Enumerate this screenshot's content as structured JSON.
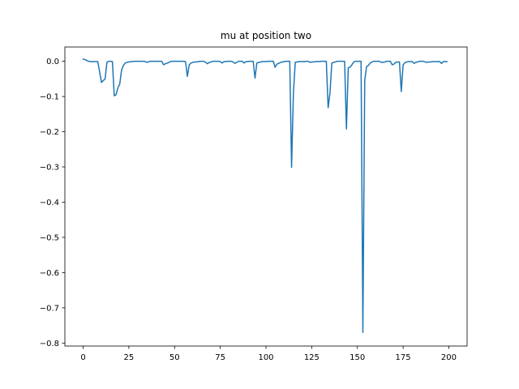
{
  "chart_data": {
    "type": "line",
    "title": "mu at position two",
    "xlabel": "",
    "ylabel": "",
    "xlim": [
      -10,
      210
    ],
    "ylim": [
      -0.8085,
      0.0405
    ],
    "x_ticks": [
      0,
      25,
      50,
      75,
      100,
      125,
      150,
      175,
      200
    ],
    "x_tick_labels": [
      "0",
      "25",
      "50",
      "75",
      "100",
      "125",
      "150",
      "175",
      "200"
    ],
    "y_ticks": [
      0.0,
      -0.1,
      -0.2,
      -0.3,
      -0.4,
      -0.5,
      -0.6,
      -0.7,
      -0.8
    ],
    "y_tick_labels": [
      "0.0",
      "−0.1",
      "−0.2",
      "−0.3",
      "−0.4",
      "−0.5",
      "−0.6",
      "−0.7",
      "−0.8"
    ],
    "grid": false,
    "legend": "none",
    "series": [
      {
        "color": "#1f77b4",
        "x": [
          0,
          1,
          2,
          3,
          4,
          5,
          6,
          7,
          8,
          9,
          10,
          11,
          12,
          13,
          14,
          15,
          16,
          17,
          18,
          19,
          20,
          21,
          22,
          23,
          24,
          25,
          26,
          27,
          28,
          29,
          30,
          31,
          32,
          33,
          34,
          35,
          36,
          37,
          38,
          39,
          40,
          41,
          42,
          43,
          44,
          45,
          46,
          47,
          48,
          49,
          50,
          51,
          52,
          53,
          54,
          55,
          56,
          57,
          58,
          59,
          60,
          61,
          62,
          63,
          64,
          65,
          66,
          67,
          68,
          69,
          70,
          71,
          72,
          73,
          74,
          75,
          76,
          77,
          78,
          79,
          80,
          81,
          82,
          83,
          84,
          85,
          86,
          87,
          88,
          89,
          90,
          91,
          92,
          93,
          94,
          95,
          96,
          97,
          98,
          99,
          100,
          101,
          102,
          103,
          104,
          105,
          106,
          107,
          108,
          109,
          110,
          111,
          112,
          113,
          114,
          115,
          116,
          117,
          118,
          119,
          120,
          121,
          122,
          123,
          124,
          125,
          126,
          127,
          128,
          129,
          130,
          131,
          132,
          133,
          134,
          135,
          136,
          137,
          138,
          139,
          140,
          141,
          142,
          143,
          144,
          145,
          146,
          147,
          148,
          149,
          150,
          151,
          152,
          153,
          154,
          155,
          156,
          157,
          158,
          159,
          160,
          161,
          162,
          163,
          164,
          165,
          166,
          167,
          168,
          169,
          170,
          171,
          172,
          173,
          174,
          175,
          176,
          177,
          178,
          179,
          180,
          181,
          182,
          183,
          184,
          185,
          186,
          187,
          188,
          189,
          190,
          191,
          192,
          193,
          194,
          195,
          196,
          197,
          198,
          199
        ],
        "y": [
          0.006,
          0.005,
          0.002,
          0.0,
          -0.001,
          -0.001,
          -0.001,
          -0.001,
          -0.001,
          -0.03,
          -0.06,
          -0.055,
          -0.05,
          -0.003,
          0.0,
          0.0,
          -0.001,
          -0.098,
          -0.095,
          -0.075,
          -0.065,
          -0.025,
          -0.012,
          -0.005,
          -0.003,
          -0.002,
          -0.001,
          -0.001,
          0.0,
          0.0,
          0.0,
          0.0,
          0.0,
          0.0,
          -0.001,
          -0.003,
          -0.001,
          0.0,
          0.0,
          0.0,
          0.0,
          0.0,
          0.0,
          0.0,
          -0.01,
          -0.007,
          -0.005,
          -0.003,
          0.0,
          0.0,
          0.0,
          0.0,
          0.0,
          0.0,
          0.0,
          0.0,
          -0.001,
          -0.043,
          -0.01,
          -0.005,
          -0.003,
          -0.002,
          -0.002,
          -0.001,
          0.0,
          0.0,
          0.0,
          -0.003,
          -0.007,
          -0.003,
          -0.002,
          0.0,
          0.0,
          0.0,
          0.0,
          -0.001,
          -0.005,
          -0.001,
          -0.001,
          0.0,
          0.0,
          0.0,
          -0.002,
          -0.006,
          -0.003,
          0.0,
          0.0,
          0.0,
          -0.005,
          -0.001,
          -0.001,
          0.0,
          0.0,
          0.0,
          -0.048,
          -0.005,
          -0.003,
          -0.002,
          -0.001,
          -0.001,
          -0.001,
          0.0,
          0.0,
          0.0,
          0.0,
          -0.017,
          -0.008,
          -0.006,
          -0.003,
          -0.002,
          -0.001,
          0.0,
          0.0,
          0.0,
          -0.301,
          -0.09,
          -0.003,
          -0.002,
          -0.001,
          -0.001,
          -0.001,
          -0.001,
          0.0,
          0.0,
          -0.003,
          -0.002,
          -0.002,
          -0.001,
          -0.001,
          -0.001,
          0.0,
          0.0,
          0.0,
          0.0,
          -0.132,
          -0.09,
          -0.005,
          -0.003,
          -0.002,
          0.0,
          0.0,
          0.0,
          0.0,
          0.0,
          -0.192,
          -0.018,
          -0.017,
          -0.01,
          -0.002,
          0.0,
          0.0,
          0.0,
          0.0,
          -0.77,
          -0.055,
          -0.015,
          -0.012,
          -0.005,
          -0.002,
          0.0,
          0.0,
          0.0,
          0.0,
          -0.003,
          -0.003,
          -0.002,
          0.0,
          0.0,
          0.0,
          -0.01,
          -0.008,
          -0.003,
          -0.002,
          -0.002,
          -0.086,
          -0.01,
          -0.004,
          -0.002,
          -0.001,
          -0.001,
          -0.001,
          -0.006,
          -0.003,
          -0.002,
          0.0,
          0.0,
          0.0,
          -0.002,
          -0.003,
          -0.002,
          -0.002,
          -0.001,
          -0.001,
          -0.001,
          -0.001,
          -0.001,
          -0.006,
          -0.001,
          -0.001,
          -0.001
        ]
      }
    ]
  }
}
